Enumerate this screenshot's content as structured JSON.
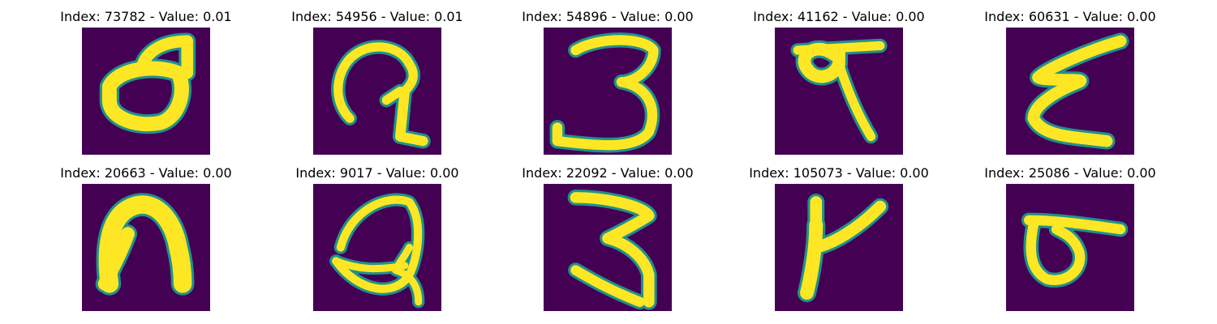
{
  "colors": {
    "background": "#440154",
    "stroke": "#fde725",
    "edge": "#21918c"
  },
  "chart_data": {
    "type": "image-grid",
    "rows": 2,
    "cols": 5,
    "panels": [
      {
        "index": "73782",
        "value": "0.01",
        "title": "Index: 73782 - Value: 0.01",
        "glyph": "loop-d"
      },
      {
        "index": "54956",
        "value": "0.01",
        "title": "Index: 54956 - Value: 0.01",
        "glyph": "hook-arc"
      },
      {
        "index": "54896",
        "value": "0.00",
        "title": "Index: 54896 - Value: 0.00",
        "glyph": "three"
      },
      {
        "index": "41162",
        "value": "0.00",
        "title": "Index: 41162 - Value: 0.00",
        "glyph": "nine-like"
      },
      {
        "index": "60631",
        "value": "0.00",
        "title": "Index: 60631 - Value: 0.00",
        "glyph": "epsilon"
      },
      {
        "index": "20663",
        "value": "0.00",
        "title": "Index: 20663 - Value: 0.00",
        "glyph": "arch-blob"
      },
      {
        "index": "9017",
        "value": "0.00",
        "title": "Index: 9017 - Value: 0.00",
        "glyph": "loop-cursive"
      },
      {
        "index": "22092",
        "value": "0.00",
        "title": "Index: 22092 - Value: 0.00",
        "glyph": "three-b"
      },
      {
        "index": "105073",
        "value": "0.00",
        "title": "Index: 105073 - Value: 0.00",
        "glyph": "k-like"
      },
      {
        "index": "25086",
        "value": "0.00",
        "title": "Index: 25086 - Value: 0.00",
        "glyph": "o-bar"
      }
    ]
  }
}
